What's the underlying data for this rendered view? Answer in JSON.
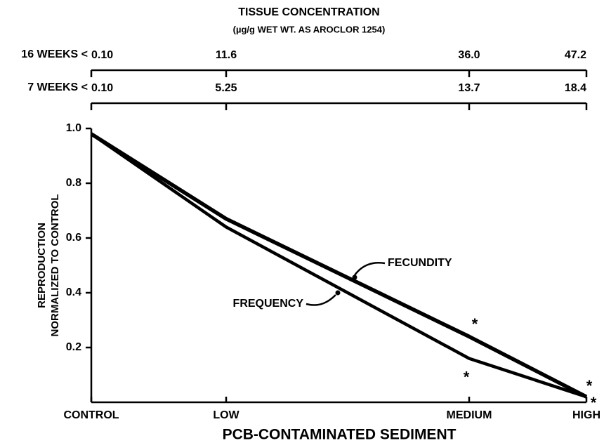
{
  "chart_data": {
    "type": "line",
    "title": "TISSUE CONCENTRATION",
    "subtitle": "(µg/g WET WT. AS AROCLOR 1254)",
    "top_axes": [
      {
        "label": "16 WEEKS <",
        "ticks": [
          "0.10",
          "11.6",
          "36.0",
          "47.2"
        ]
      },
      {
        "label": "7 WEEKS <",
        "ticks": [
          "0.10",
          "5.25",
          "13.7",
          "18.4"
        ]
      }
    ],
    "categories": [
      "CONTROL",
      "LOW",
      "MEDIUM",
      "HIGH"
    ],
    "x_label": "PCB-CONTAMINATED SEDIMENT",
    "y_label": [
      "REPRODUCTION",
      "NORMALIZED TO CONTROL"
    ],
    "ylim": [
      0,
      1
    ],
    "yticks": [
      0.2,
      0.4,
      0.6,
      0.8,
      {
        "value": 1,
        "label": "1.0"
      }
    ],
    "series": [
      {
        "name": "FECUNDITY",
        "color": "#000000",
        "values": [
          0.98,
          0.67,
          0.24,
          0.02
        ]
      },
      {
        "name": "FREQUENCY",
        "color": "#000000",
        "values": [
          0.98,
          0.64,
          0.16,
          0.02
        ]
      }
    ],
    "annotations": [
      {
        "text": "*",
        "series": 0,
        "point": 2
      },
      {
        "text": "*",
        "series": 1,
        "point": 2
      },
      {
        "text": "*",
        "series": 0,
        "point": 3
      },
      {
        "text": "*",
        "series": 1,
        "point": 3
      }
    ]
  }
}
